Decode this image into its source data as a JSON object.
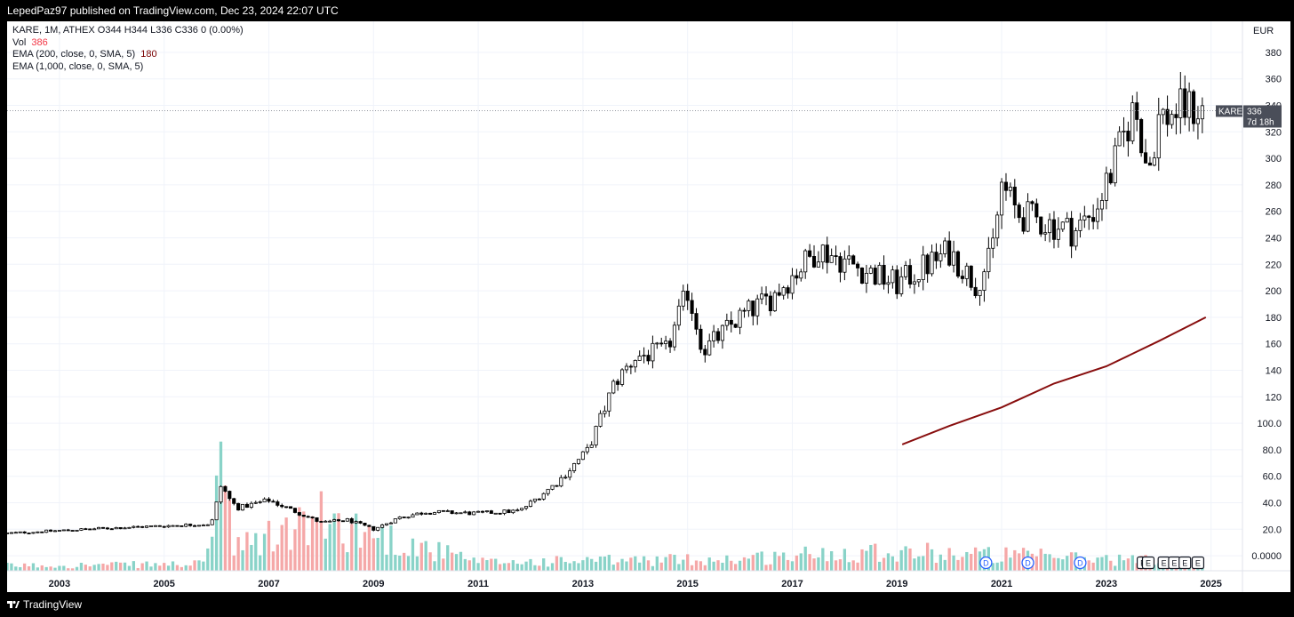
{
  "header": {
    "published": "LepedPaz97 published on TradingView.com, Dec 23, 2024 22:07 UTC"
  },
  "footer": {
    "brand": "TradingView",
    "logo_icon": "tradingview-logo-icon"
  },
  "legend": {
    "symbol_line": "KARE, 1M, ATHEX  O344  H344  L336  C336  0 (0.00%)",
    "vol_label": "Vol",
    "vol_value": "386",
    "ema200_label": "EMA (200, close, 0, SMA, 5)",
    "ema200_value": "180",
    "ema1000_label": "EMA (1,000, close, 0, SMA, 5)"
  },
  "price_scale": {
    "currency": "EUR"
  },
  "last_price": {
    "symbol": "KARE",
    "price": "336",
    "countdown": "7d 18h"
  },
  "chart_data": {
    "type": "candlestick",
    "symbol": "KARE",
    "interval": "1M",
    "exchange": "ATHEX",
    "currency": "EUR",
    "x_range": [
      2002.0,
      2025.6
    ],
    "ylim": [
      -10,
      390
    ],
    "x_ticks": [
      "2003",
      "2005",
      "2007",
      "2009",
      "2011",
      "2013",
      "2015",
      "2017",
      "2019",
      "2021",
      "2023",
      "2025"
    ],
    "y_ticks": [
      "0.0000",
      "20.0",
      "40.0",
      "60.0",
      "80.0",
      "100.0",
      "120",
      "140",
      "160",
      "180",
      "200",
      "220",
      "240",
      "260",
      "280",
      "300",
      "320",
      "340",
      "360",
      "380"
    ],
    "grid": true,
    "price_path": [
      [
        2002.0,
        17
      ],
      [
        2004.0,
        21
      ],
      [
        2005.9,
        24
      ],
      [
        2006.1,
        55
      ],
      [
        2006.2,
        45
      ],
      [
        2006.4,
        36
      ],
      [
        2007.0,
        42
      ],
      [
        2008.0,
        25
      ],
      [
        2008.5,
        27
      ],
      [
        2009.0,
        20
      ],
      [
        2009.5,
        29
      ],
      [
        2010.0,
        33
      ],
      [
        2011.0,
        32
      ],
      [
        2011.8,
        34
      ],
      [
        2012.5,
        55
      ],
      [
        2013.1,
        80
      ],
      [
        2013.6,
        130
      ],
      [
        2014.0,
        150
      ],
      [
        2014.6,
        155
      ],
      [
        2015.0,
        200
      ],
      [
        2015.3,
        155
      ],
      [
        2016.0,
        180
      ],
      [
        2016.6,
        195
      ],
      [
        2017.5,
        232
      ],
      [
        2018.4,
        215
      ],
      [
        2019.0,
        205
      ],
      [
        2020.0,
        230
      ],
      [
        2020.5,
        205
      ],
      [
        2020.8,
        225
      ],
      [
        2021.0,
        280
      ],
      [
        2021.3,
        258
      ],
      [
        2022.4,
        245
      ],
      [
        2022.8,
        262
      ],
      [
        2023.1,
        290
      ],
      [
        2023.5,
        335
      ],
      [
        2023.6,
        330
      ],
      [
        2023.8,
        290
      ],
      [
        2024.0,
        330
      ],
      [
        2024.5,
        338
      ],
      [
        2024.9,
        336
      ]
    ],
    "volume_path": [
      [
        2002.0,
        3
      ],
      [
        2005.8,
        4
      ],
      [
        2006.05,
        70
      ],
      [
        2006.15,
        60
      ],
      [
        2006.3,
        12
      ],
      [
        2008.0,
        30
      ],
      [
        2011.0,
        5
      ],
      [
        2016.0,
        7
      ],
      [
        2018.5,
        12
      ],
      [
        2024.9,
        5
      ]
    ],
    "series": [
      {
        "name": "EMA (200, close, 0, SMA, 5)",
        "color": "#880e0e",
        "points": [
          [
            2019.1,
            84
          ],
          [
            2020.0,
            98
          ],
          [
            2021.0,
            112
          ],
          [
            2022.0,
            130
          ],
          [
            2023.0,
            143
          ],
          [
            2024.0,
            162
          ],
          [
            2024.9,
            180
          ]
        ]
      }
    ],
    "last": {
      "open": 344,
      "high": 344,
      "low": 336,
      "close": 336,
      "volume": 386
    },
    "events": [
      {
        "type": "dividend",
        "label": "D",
        "x": 2020.7
      },
      {
        "type": "dividend",
        "label": "D",
        "x": 2021.5
      },
      {
        "type": "dividend",
        "label": "D",
        "x": 2022.5
      },
      {
        "type": "earnings",
        "label": "E",
        "x": 2023.7
      },
      {
        "type": "earnings",
        "label": "E",
        "x": 2023.8
      },
      {
        "type": "earnings",
        "label": "E",
        "x": 2024.1
      },
      {
        "type": "earnings",
        "label": "E",
        "x": 2024.3
      },
      {
        "type": "earnings",
        "label": "E",
        "x": 2024.5
      },
      {
        "type": "earnings",
        "label": "E",
        "x": 2024.75
      }
    ],
    "colors": {
      "up_candle": "#ffffff",
      "down_candle": "#000000",
      "vol_up": "#89d3c8",
      "vol_down": "#f5a8a8",
      "ema": "#880e0e",
      "grid": "#f0f3fa",
      "event": "#2962ff"
    }
  }
}
